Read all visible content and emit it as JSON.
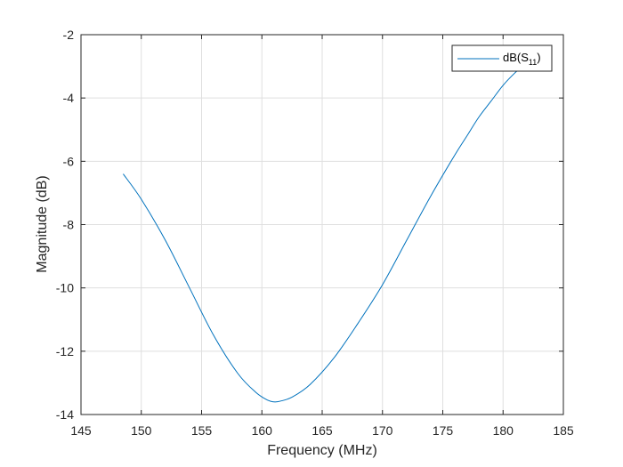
{
  "chart_data": {
    "type": "line",
    "xlabel": "Frequency (MHz)",
    "ylabel": "Magnitude (dB)",
    "xlim": [
      145,
      185
    ],
    "ylim": [
      -14,
      -2
    ],
    "x_ticks": [
      145,
      150,
      155,
      160,
      165,
      170,
      175,
      180,
      185
    ],
    "y_ticks": [
      -14,
      -12,
      -10,
      -8,
      -6,
      -4,
      -2
    ],
    "x_tick_labels": [
      "145",
      "150",
      "155",
      "160",
      "165",
      "170",
      "175",
      "180",
      "185"
    ],
    "y_tick_labels": [
      "-14",
      "-12",
      "-10",
      "-8",
      "-6",
      "-4",
      "-2"
    ],
    "grid": true,
    "legend_position": "top-right",
    "legend": {
      "base": "dB(S",
      "subscript": "11",
      "suffix": ")"
    },
    "series": [
      {
        "name": "dB(S11)",
        "color": "#0072bd",
        "x": [
          148.5,
          150,
          152,
          154,
          156,
          158,
          159.5,
          160.5,
          161,
          161.5,
          162.5,
          164,
          166,
          168,
          170,
          172,
          174,
          176,
          177,
          178,
          179,
          180,
          181,
          181.5
        ],
        "y": [
          -6.4,
          -7.2,
          -8.5,
          -10.0,
          -11.5,
          -12.7,
          -13.3,
          -13.55,
          -13.6,
          -13.58,
          -13.45,
          -13.05,
          -12.2,
          -11.1,
          -9.9,
          -8.5,
          -7.1,
          -5.8,
          -5.2,
          -4.6,
          -4.1,
          -3.6,
          -3.2,
          -3.05
        ]
      }
    ]
  }
}
